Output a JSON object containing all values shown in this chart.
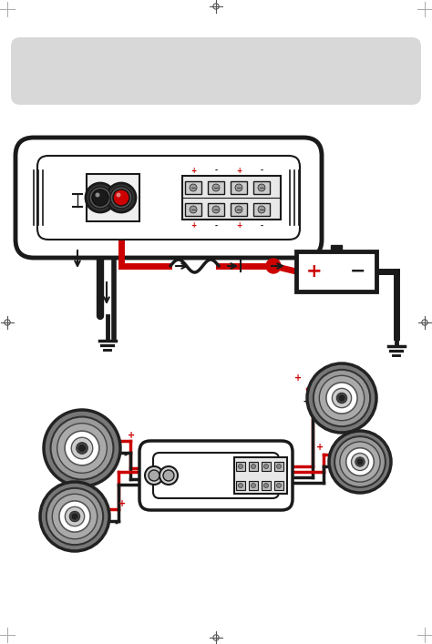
{
  "bg_color": "#ffffff",
  "black_color": "#1a1a1a",
  "red_color": "#cc0000",
  "gray_color": "#888888",
  "light_gray": "#d8d8d8",
  "amp_fill": "#ffffff",
  "terminal_gray": "#c0c0c0"
}
